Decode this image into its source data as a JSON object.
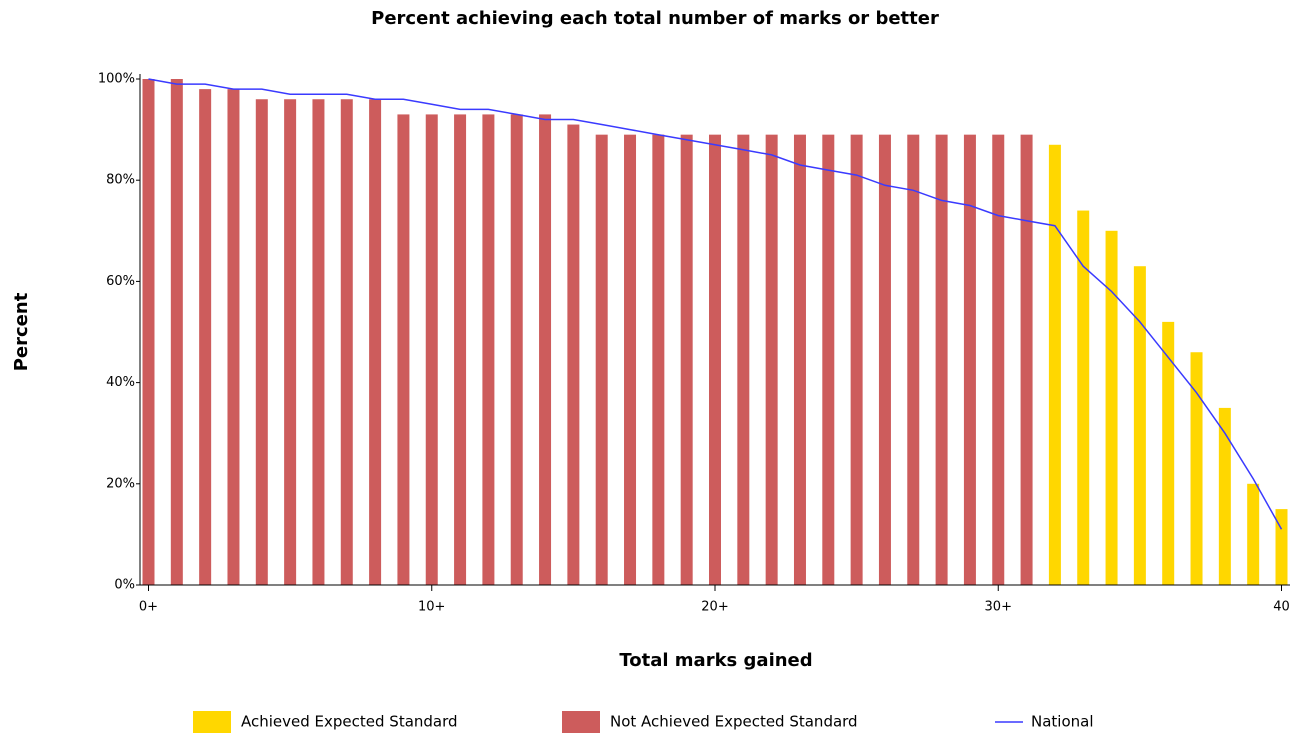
{
  "chart_data": {
    "type": "bar-line",
    "title": "Percent achieving each total number of marks or better",
    "x_label": "Total marks gained",
    "y_label": "Percent",
    "x": [
      0,
      1,
      2,
      3,
      4,
      5,
      6,
      7,
      8,
      9,
      10,
      11,
      12,
      13,
      14,
      15,
      16,
      17,
      18,
      19,
      20,
      21,
      22,
      23,
      24,
      25,
      26,
      27,
      28,
      29,
      30,
      31,
      32,
      33,
      34,
      35,
      36,
      37,
      38,
      39,
      40
    ],
    "series": [
      {
        "name": "Achieved Expected Standard",
        "type": "bar",
        "color": "#ffd700",
        "values": [
          null,
          null,
          null,
          null,
          null,
          null,
          null,
          null,
          null,
          null,
          null,
          null,
          null,
          null,
          null,
          null,
          null,
          null,
          null,
          null,
          null,
          null,
          null,
          null,
          null,
          null,
          null,
          null,
          null,
          null,
          null,
          null,
          87,
          74,
          70,
          63,
          52,
          46,
          35,
          20,
          15
        ]
      },
      {
        "name": "Not Achieved Expected Standard",
        "type": "bar",
        "color": "#cd5c5c",
        "values": [
          100,
          100,
          98,
          98,
          96,
          96,
          96,
          96,
          96,
          93,
          93,
          93,
          93,
          93,
          93,
          91,
          89,
          89,
          89,
          89,
          89,
          89,
          89,
          89,
          89,
          89,
          89,
          89,
          89,
          89,
          89,
          89,
          null,
          null,
          null,
          null,
          null,
          null,
          null,
          null,
          null
        ]
      },
      {
        "name": "National",
        "type": "line",
        "color": "#3a3aff",
        "values": [
          100,
          99,
          99,
          98,
          98,
          97,
          97,
          97,
          96,
          96,
          95,
          94,
          94,
          93,
          92,
          92,
          91,
          90,
          89,
          88,
          87,
          86,
          85,
          83,
          82,
          81,
          79,
          78,
          76,
          75,
          73,
          72,
          71,
          63,
          58,
          52,
          45,
          38,
          30,
          21,
          11
        ]
      }
    ],
    "xlim": [
      -0.3,
      40.3
    ],
    "xticks": [
      {
        "value": 0,
        "label": "0+"
      },
      {
        "value": 10,
        "label": "10+"
      },
      {
        "value": 20,
        "label": "20+"
      },
      {
        "value": 30,
        "label": "30+"
      },
      40
    ],
    "ylim": [
      0,
      100
    ],
    "yticks": [
      {
        "value": 0,
        "label": "0%"
      },
      {
        "value": 20,
        "label": "20%"
      },
      {
        "value": 40,
        "label": "40%"
      },
      {
        "value": 60,
        "label": "60%"
      },
      {
        "value": 80,
        "label": "80%"
      },
      {
        "value": 100,
        "label": "100%"
      }
    ],
    "legend": "bottom"
  }
}
